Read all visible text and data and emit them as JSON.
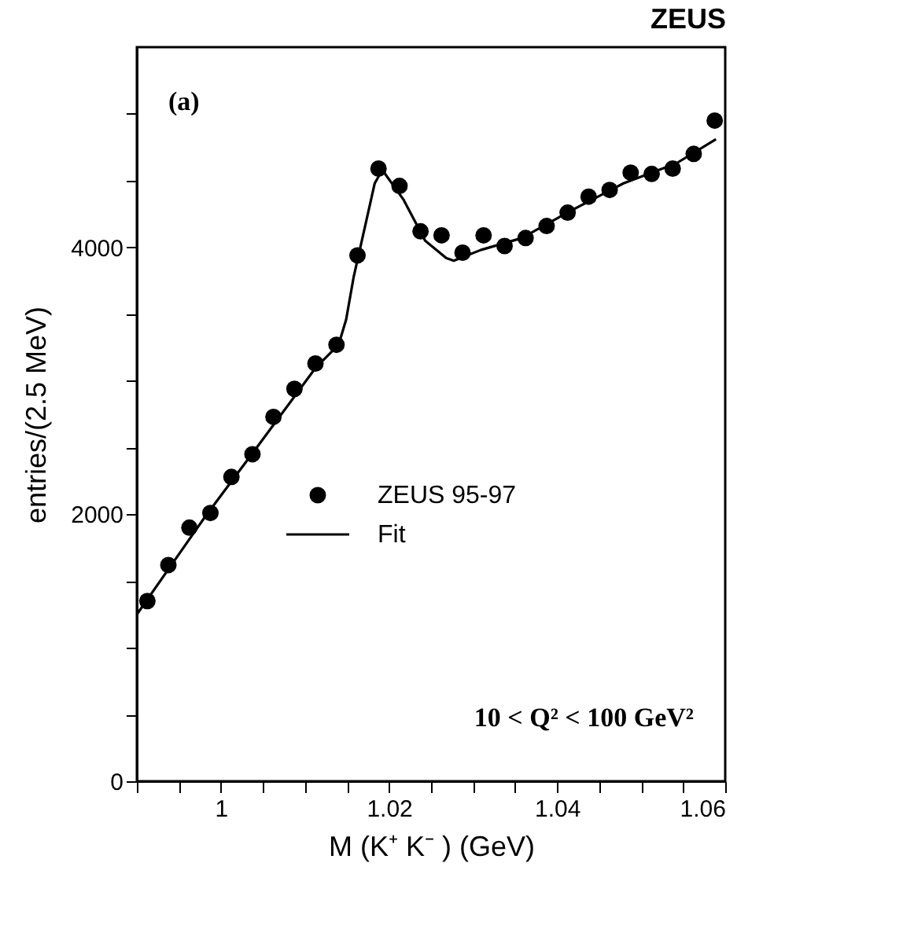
{
  "chart_data": {
    "type": "scatter",
    "title": "ZEUS",
    "xlabel": "M (K⁺ K⁻ ) (GeV)",
    "ylabel": "entries/(2.5 MeV)",
    "annotations": [
      "10 < Q² < 100 GeV²",
      "(a)"
    ],
    "x": [
      0.99125,
      0.99375,
      0.99625,
      0.99875,
      1.00125,
      1.00375,
      1.00625,
      1.00875,
      1.01125,
      1.01375,
      1.01625,
      1.01875,
      1.02125,
      1.02375,
      1.02625,
      1.02875,
      1.03125,
      1.03375,
      1.03625,
      1.03875,
      1.04125,
      1.04375,
      1.04625,
      1.04875,
      1.05125,
      1.05375,
      1.05625,
      1.05875
    ],
    "series": [
      {
        "name": "ZEUS 95-97",
        "color": "#000000",
        "marker": "circle",
        "values": [
          1350,
          1620,
          1900,
          2010,
          2280,
          2450,
          2730,
          2940,
          3130,
          3270,
          3940,
          4590,
          4460,
          4120,
          4090,
          3960,
          4090,
          4010,
          4070,
          4160,
          4260,
          4380,
          4430,
          4560,
          4550,
          4590,
          4700,
          4950
        ]
      },
      {
        "name": "Fit",
        "type": "line",
        "color": "#000000",
        "line_style": "solid",
        "x": [
          0.99,
          0.9981,
          1.0045,
          1.0113,
          1.014,
          1.0149,
          1.0158,
          1.0183,
          1.0192,
          1.0217,
          1.0243,
          1.0268,
          1.0277,
          1.0309,
          1.0358,
          1.0415,
          1.0479,
          1.0542,
          1.0589
        ],
        "values": [
          1250,
          1980,
          2520,
          3100,
          3270,
          3460,
          3780,
          4480,
          4580,
          4360,
          4050,
          3920,
          3900,
          3980,
          4070,
          4270,
          4480,
          4630,
          4810
        ]
      }
    ],
    "xlim": [
      0.99,
      1.06
    ],
    "xticks": [
      {
        "value": 0.99,
        "label": null
      },
      {
        "value": 0.995,
        "label": null
      },
      {
        "value": 1,
        "label": "1"
      },
      {
        "value": 1.005,
        "label": null
      },
      {
        "value": 1.01,
        "label": null
      },
      {
        "value": 1.015,
        "label": null
      },
      {
        "value": 1.02,
        "label": "1.02"
      },
      {
        "value": 1.025,
        "label": null
      },
      {
        "value": 1.03,
        "label": null
      },
      {
        "value": 1.035,
        "label": null
      },
      {
        "value": 1.04,
        "label": "1.04"
      },
      {
        "value": 1.045,
        "label": null
      },
      {
        "value": 1.05,
        "label": null
      },
      {
        "value": 1.055,
        "label": null
      },
      {
        "value": 1.06,
        "label": "1.06"
      }
    ],
    "ylim": [
      0,
      5500
    ],
    "yticks": [
      0,
      {
        "value": 500,
        "label": null
      },
      {
        "value": 1000,
        "label": null
      },
      {
        "value": 1500,
        "label": null
      },
      2000,
      {
        "value": 2500,
        "label": null
      },
      {
        "value": 3000,
        "label": null
      },
      {
        "value": 3500,
        "label": null
      },
      4000,
      {
        "value": 4500,
        "label": null
      },
      {
        "value": 5000,
        "label": null
      }
    ],
    "grid": false,
    "legend": "bottom"
  }
}
